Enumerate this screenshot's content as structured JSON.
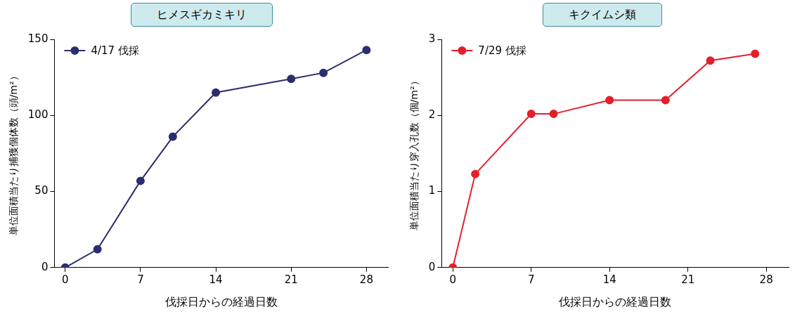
{
  "chart_data": [
    {
      "type": "line",
      "title": "ヒメスギカミキリ",
      "x_label": "伐採日からの経過日数",
      "y_label": "単位面積当たり捕獲個体数（頭/m²）",
      "x": [
        0,
        3,
        7,
        10,
        14,
        21,
        24,
        28
      ],
      "series": [
        {
          "name": "4/17 伐採",
          "color": "#2b2e6e",
          "marker": "circle",
          "values": [
            0,
            12,
            57,
            86,
            115,
            124,
            128,
            143
          ]
        }
      ],
      "xlim": [
        -1,
        30
      ],
      "xticks": [
        0,
        7,
        14,
        21,
        28
      ],
      "ylim": [
        0,
        150
      ],
      "yticks": [
        0,
        50,
        100,
        150
      ],
      "grid": false,
      "legend": "upper left"
    },
    {
      "type": "line",
      "title": "キクイムシ類",
      "x_label": "伐採日からの経過日数",
      "y_label": "単位面積当たり穿入孔数（個/m²）",
      "x": [
        0,
        2,
        7,
        9,
        14,
        19,
        23,
        27
      ],
      "series": [
        {
          "name": "7/29 伐採",
          "color": "#e3202a",
          "marker": "circle",
          "values": [
            0,
            1.23,
            2.02,
            2.02,
            2.2,
            2.2,
            2.72,
            2.81
          ]
        }
      ],
      "xlim": [
        -1,
        30
      ],
      "xticks": [
        0,
        7,
        14,
        21,
        28
      ],
      "ylim": [
        0,
        3
      ],
      "yticks": [
        0,
        1,
        2,
        3
      ],
      "grid": false,
      "legend": "upper left"
    }
  ]
}
